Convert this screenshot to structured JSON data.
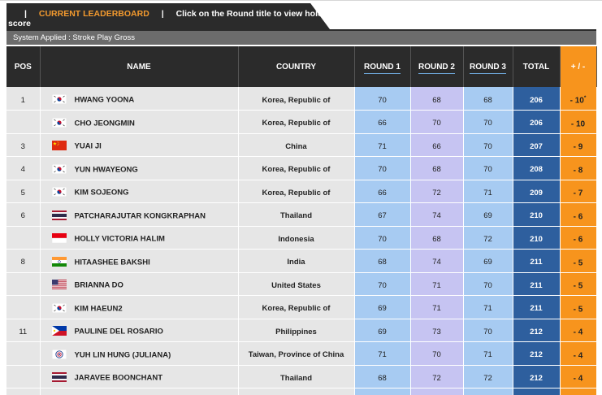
{
  "header": {
    "tab_pipe_left": "|",
    "tab_title": "CURRENT LEADERBOARD",
    "tab_pipe_right": "|",
    "tab_note": "Click on the Round title to view hole by hole",
    "tab_note_wrap": "score",
    "system_text": "System Applied : Stroke Play Gross"
  },
  "table": {
    "columns": [
      "POS",
      "NAME",
      "COUNTRY",
      "ROUND 1",
      "ROUND 2",
      "ROUND 3",
      "TOTAL",
      "+ / -"
    ],
    "rows": [
      {
        "pos": "1",
        "flag": "korea",
        "name": "HWANG YOONA",
        "country": "Korea, Republic of",
        "r1": "70",
        "r2": "68",
        "r3": "68",
        "total": "206",
        "tp": "- 10",
        "tp_mark": "*"
      },
      {
        "pos": "",
        "flag": "korea",
        "name": "CHO JEONGMIN",
        "country": "Korea, Republic of",
        "r1": "66",
        "r2": "70",
        "r3": "70",
        "total": "206",
        "tp": "- 10",
        "tp_mark": ""
      },
      {
        "pos": "3",
        "flag": "china",
        "name": "YUAI JI",
        "country": "China",
        "r1": "71",
        "r2": "66",
        "r3": "70",
        "total": "207",
        "tp": "- 9",
        "tp_mark": ""
      },
      {
        "pos": "4",
        "flag": "korea",
        "name": "YUN HWAYEONG",
        "country": "Korea, Republic of",
        "r1": "70",
        "r2": "68",
        "r3": "70",
        "total": "208",
        "tp": "- 8",
        "tp_mark": ""
      },
      {
        "pos": "5",
        "flag": "korea",
        "name": "KIM SOJEONG",
        "country": "Korea, Republic of",
        "r1": "66",
        "r2": "72",
        "r3": "71",
        "total": "209",
        "tp": "- 7",
        "tp_mark": ""
      },
      {
        "pos": "6",
        "flag": "thailand",
        "name": "PATCHARAJUTAR KONGKRAPHAN",
        "country": "Thailand",
        "r1": "67",
        "r2": "74",
        "r3": "69",
        "total": "210",
        "tp": "- 6",
        "tp_mark": ""
      },
      {
        "pos": "",
        "flag": "indonesia",
        "name": "HOLLY VICTORIA HALIM",
        "country": "Indonesia",
        "r1": "70",
        "r2": "68",
        "r3": "72",
        "total": "210",
        "tp": "- 6",
        "tp_mark": ""
      },
      {
        "pos": "8",
        "flag": "india",
        "name": "HITAASHEE BAKSHI",
        "country": "India",
        "r1": "68",
        "r2": "74",
        "r3": "69",
        "total": "211",
        "tp": "- 5",
        "tp_mark": ""
      },
      {
        "pos": "",
        "flag": "usa",
        "name": "BRIANNA DO",
        "country": "United States",
        "r1": "70",
        "r2": "71",
        "r3": "70",
        "total": "211",
        "tp": "- 5",
        "tp_mark": ""
      },
      {
        "pos": "",
        "flag": "korea",
        "name": "KIM HAEUN2",
        "country": "Korea, Republic of",
        "r1": "69",
        "r2": "71",
        "r3": "71",
        "total": "211",
        "tp": "- 5",
        "tp_mark": ""
      },
      {
        "pos": "11",
        "flag": "philippines",
        "name": "PAULINE DEL ROSARIO",
        "country": "Philippines",
        "r1": "69",
        "r2": "73",
        "r3": "70",
        "total": "212",
        "tp": "- 4",
        "tp_mark": ""
      },
      {
        "pos": "",
        "flag": "taiwan",
        "name": "YUH LIN HUNG (JULIANA)",
        "country": "Taiwan, Province of China",
        "r1": "71",
        "r2": "70",
        "r3": "71",
        "total": "212",
        "tp": "- 4",
        "tp_mark": ""
      },
      {
        "pos": "",
        "flag": "thailand",
        "name": "JARAVEE BOONCHANT",
        "country": "Thailand",
        "r1": "68",
        "r2": "72",
        "r3": "72",
        "total": "212",
        "tp": "- 4",
        "tp_mark": ""
      },
      {
        "pos": "",
        "flag": "",
        "name": "",
        "country": "",
        "r1": "",
        "r2": "",
        "r3": "",
        "total": "",
        "tp": "",
        "tp_mark": ""
      }
    ]
  },
  "colors": {
    "header_bg": "#2b2b2b",
    "accent": "#f7941d",
    "round1": "#a7cbf2",
    "round2": "#c6c4f2",
    "total": "#2e5f9e"
  }
}
